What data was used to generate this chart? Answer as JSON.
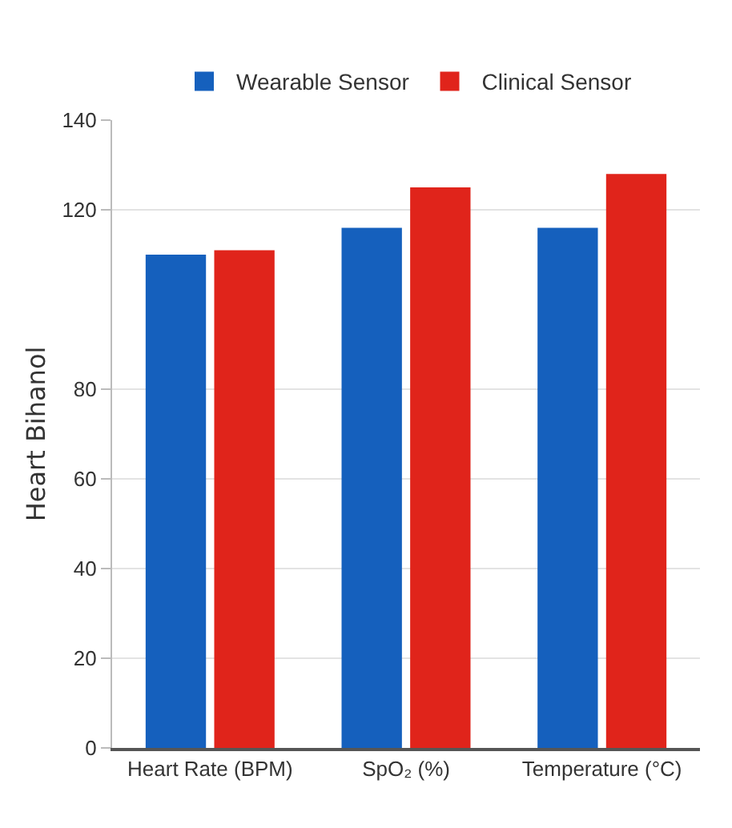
{
  "chart_data": {
    "type": "bar",
    "ylabel": "Heart Bihanol",
    "categories": [
      "Heart Rate (BPM)",
      "SpO₂ (%)",
      "Temperature (°C)"
    ],
    "series": [
      {
        "name": "Wearable Sensor",
        "color": "#1560bd",
        "values": [
          110,
          116,
          116
        ]
      },
      {
        "name": "Clinical Sensor",
        "color": "#e0241b",
        "values": [
          111,
          125,
          128
        ]
      }
    ],
    "ylim": [
      0,
      140
    ],
    "yticks": [
      0,
      20,
      40,
      60,
      80,
      120,
      140
    ],
    "grid": "y",
    "legend": "top"
  }
}
